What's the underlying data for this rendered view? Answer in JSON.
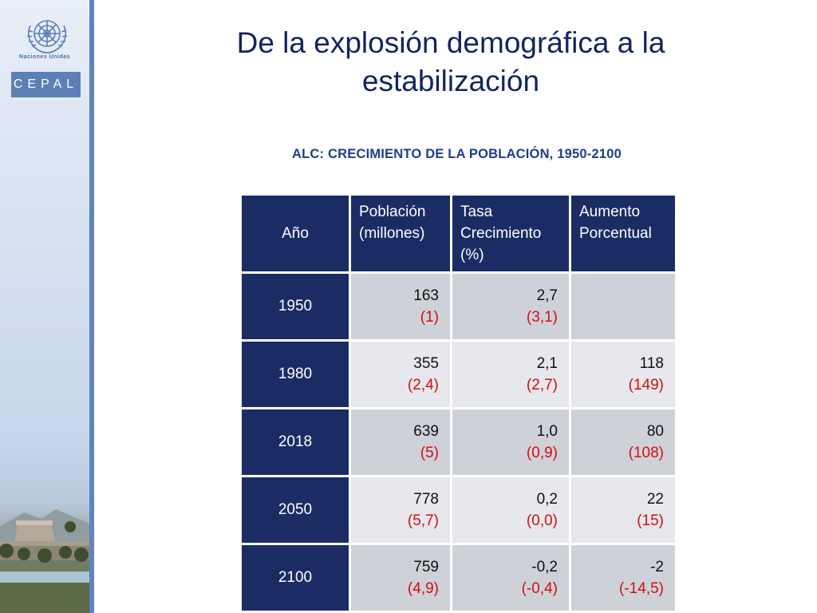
{
  "branding": {
    "un_text": "Naciones Unidas",
    "cepal_text": "CEPAL"
  },
  "slide": {
    "title_line1": "De la explosión demográfica a la",
    "title_line2": "estabilización",
    "subtitle": "ALC: CRECIMIENTO DE LA POBLACIÓN, 1950-2100"
  },
  "table": {
    "headers": {
      "year": "Año",
      "population_l1": "Población",
      "population_l2": "(millones)",
      "rate_l1": "Tasa",
      "rate_l2": "Crecimiento",
      "rate_l3": "(%)",
      "increase_l1": "Aumento",
      "increase_l2": "Porcentual"
    },
    "rows": [
      {
        "year": "1950",
        "pop": "163",
        "pop_sub": "(1)",
        "rate": "2,7",
        "rate_sub": "(3,1)",
        "inc": "",
        "inc_sub": ""
      },
      {
        "year": "1980",
        "pop": "355",
        "pop_sub": "(2,4)",
        "rate": "2,1",
        "rate_sub": "(2,7)",
        "inc": "118",
        "inc_sub": "(149)"
      },
      {
        "year": "2018",
        "pop": "639",
        "pop_sub": "(5)",
        "rate": "1,0",
        "rate_sub": "(0,9)",
        "inc": "80",
        "inc_sub": "(108)"
      },
      {
        "year": "2050",
        "pop": "778",
        "pop_sub": "(5,7)",
        "rate": "0,2",
        "rate_sub": "(0,0)",
        "inc": "22",
        "inc_sub": "(15)"
      },
      {
        "year": "2100",
        "pop": "759",
        "pop_sub": "(4,9)",
        "rate": "-0,2",
        "rate_sub": "(-0,4)",
        "inc": "-2",
        "inc_sub": "(-14,5)"
      }
    ]
  },
  "colors": {
    "header_bg": "#1b2c65",
    "title": "#13245e",
    "subtitle": "#1c3f86",
    "highlight_red": "#d10f0f",
    "sidebar_accent": "#5f85bf"
  }
}
